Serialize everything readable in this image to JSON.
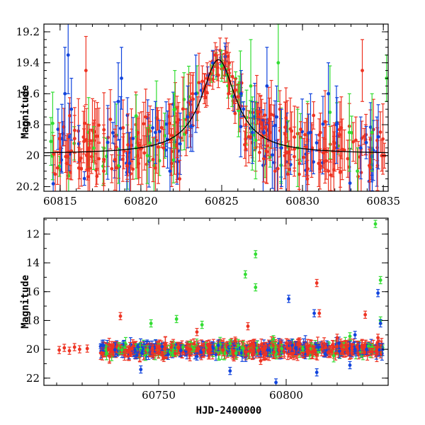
{
  "colors": {
    "red": "#ee3322",
    "green": "#33dd33",
    "blue": "#1144dd",
    "fit": "#000000"
  },
  "chart_data": [
    {
      "type": "scatter",
      "title": "",
      "xlabel": "",
      "ylabel": "Magnitude",
      "xlim": [
        60814,
        60835.3
      ],
      "ylim": [
        20.23,
        19.15
      ],
      "y_inverted": true,
      "xticks": [
        60815,
        60820,
        60825,
        60830,
        60835
      ],
      "yticks": [
        19.2,
        19.4,
        19.6,
        19.8,
        20,
        20.2
      ],
      "xtick_labels": [
        "60815",
        "60820",
        "60825",
        "60830",
        "60835"
      ],
      "ytick_labels": [
        "19.2",
        "19.4",
        "19.6",
        "19.8",
        "20",
        "20.2"
      ],
      "grid": false,
      "legend": "none",
      "series": [
        {
          "color": "#ee3322",
          "points": [
            [
              60814.6,
              19.99,
              0.12
            ],
            [
              60814.7,
              20.12,
              0.15
            ],
            [
              60815.4,
              20.05,
              0.18
            ],
            [
              60815.9,
              19.89,
              0.15
            ],
            [
              60816.2,
              20.03,
              0.12
            ],
            [
              60816.6,
              19.45,
              0.22
            ],
            [
              60816.8,
              19.95,
              0.15
            ],
            [
              60817.4,
              20.02,
              0.1
            ],
            [
              60817.7,
              20.1,
              0.08
            ],
            [
              60818.9,
              19.82,
              0.18
            ],
            [
              60819.2,
              19.93,
              0.2
            ],
            [
              60819.8,
              20.0,
              0.15
            ],
            [
              60820.3,
              19.75,
              0.18
            ],
            [
              60820.9,
              20.08,
              0.2
            ],
            [
              60821.4,
              19.95,
              0.12
            ],
            [
              60821.9,
              20.05,
              0.15
            ],
            [
              60822.4,
              20.15,
              0.12
            ],
            [
              60822.8,
              19.85,
              0.15
            ],
            [
              60823.2,
              19.6,
              0.12
            ],
            [
              60823.5,
              19.72,
              0.1
            ],
            [
              60823.8,
              19.52,
              0.1
            ],
            [
              60824.1,
              19.5,
              0.1
            ],
            [
              60824.3,
              19.47,
              0.08
            ],
            [
              60824.6,
              19.35,
              0.08
            ],
            [
              60824.9,
              19.32,
              0.08
            ],
            [
              60825.2,
              19.4,
              0.08
            ],
            [
              60825.5,
              19.52,
              0.08
            ],
            [
              60825.8,
              19.58,
              0.08
            ],
            [
              60826.0,
              19.62,
              0.08
            ],
            [
              60826.2,
              19.68,
              0.08
            ],
            [
              60826.5,
              19.8,
              0.12
            ],
            [
              60826.8,
              19.88,
              0.12
            ],
            [
              60827.1,
              19.95,
              0.15
            ],
            [
              60827.3,
              19.75,
              0.15
            ],
            [
              60827.6,
              20.02,
              0.15
            ],
            [
              60828.0,
              19.85,
              0.18
            ],
            [
              60828.3,
              20.1,
              0.15
            ],
            [
              60828.6,
              19.7,
              0.12
            ],
            [
              60828.9,
              20.0,
              0.15
            ],
            [
              60829.5,
              19.88,
              0.2
            ],
            [
              60829.8,
              20.05,
              0.2
            ],
            [
              60830.3,
              20.15,
              0.12
            ],
            [
              60830.6,
              19.95,
              0.15
            ],
            [
              60831.0,
              20.05,
              0.15
            ],
            [
              60831.4,
              19.78,
              0.2
            ],
            [
              60831.6,
              20.1,
              0.15
            ],
            [
              60832.0,
              19.95,
              0.15
            ],
            [
              60832.4,
              19.82,
              0.2
            ],
            [
              60832.8,
              20.02,
              0.12
            ],
            [
              60833.3,
              19.9,
              0.15
            ],
            [
              60833.7,
              19.45,
              0.2
            ],
            [
              60834.3,
              19.98,
              0.12
            ],
            [
              60834.9,
              20.0,
              0.1
            ]
          ]
        },
        {
          "color": "#33dd33",
          "points": [
            [
              60819.7,
              19.95,
              0.2
            ],
            [
              60820.4,
              20.0,
              0.18
            ],
            [
              60822.1,
              19.7,
              0.25
            ],
            [
              60825.0,
              19.42,
              0.1
            ],
            [
              60826.8,
              19.55,
              0.3
            ],
            [
              60827.1,
              19.9,
              0.25
            ],
            [
              60828.5,
              19.4,
              0.25
            ],
            [
              60829.7,
              19.95,
              0.25
            ],
            [
              60831.7,
              19.72,
              0.3
            ],
            [
              60832.9,
              19.85,
              0.25
            ],
            [
              60833.4,
              20.1,
              0.15
            ],
            [
              60834.3,
              19.85,
              0.25
            ],
            [
              60835.2,
              19.5,
              0.15
            ]
          ]
        },
        {
          "color": "#1144dd",
          "points": [
            [
              60815.3,
              19.6,
              0.3
            ],
            [
              60815.5,
              19.35,
              0.25
            ],
            [
              60815.7,
              19.7,
              0.2
            ],
            [
              60818.6,
              19.65,
              0.25
            ],
            [
              60818.8,
              19.5,
              0.2
            ],
            [
              60819.3,
              20.05,
              0.2
            ],
            [
              60820.9,
              19.85,
              0.2
            ],
            [
              60821.8,
              20.1,
              0.15
            ],
            [
              60822.9,
              19.75,
              0.2
            ],
            [
              60823.4,
              19.6,
              0.25
            ],
            [
              60826.2,
              19.6,
              0.15
            ],
            [
              60826.9,
              19.85,
              0.2
            ],
            [
              60827.8,
              19.55,
              0.25
            ],
            [
              60828.4,
              19.75,
              0.2
            ],
            [
              60828.7,
              19.95,
              0.25
            ],
            [
              60830.5,
              19.85,
              0.25
            ],
            [
              60831.6,
              19.6,
              0.2
            ],
            [
              60832.1,
              19.8,
              0.25
            ],
            [
              60833.6,
              19.95,
              0.2
            ]
          ]
        }
      ],
      "model_curve": {
        "baseline": 19.99,
        "peak": 19.38,
        "t0": 60824.8,
        "width": 1.3
      }
    },
    {
      "type": "scatter",
      "title": "",
      "xlabel": "HJD-2400000",
      "ylabel": "Magnitude",
      "xlim": [
        60705,
        60840
      ],
      "ylim": [
        22.5,
        10.9
      ],
      "y_inverted": true,
      "xticks": [
        60750,
        60800
      ],
      "yticks": [
        12,
        14,
        16,
        18,
        20,
        22
      ],
      "xtick_labels": [
        "60750",
        "60800"
      ],
      "ytick_labels": [
        "12",
        "14",
        "16",
        "18",
        "20",
        "22"
      ],
      "grid": false,
      "legend": "none",
      "baseline_mag": 20.0,
      "series": [
        {
          "color": "#ee3322",
          "points": [
            [
              60711,
              20.05
            ],
            [
              60713,
              19.9
            ],
            [
              60715,
              20.1
            ],
            [
              60717,
              19.85
            ],
            [
              60719,
              20.0
            ],
            [
              60722,
              19.95
            ],
            [
              60735,
              17.7
            ],
            [
              60765,
              18.8
            ],
            [
              60785,
              18.4
            ],
            [
              60812,
              15.4
            ],
            [
              60813,
              17.5
            ],
            [
              60831,
              17.6
            ],
            [
              60836,
              19.2
            ],
            [
              60752,
              20.6
            ],
            [
              60780,
              19.4
            ],
            [
              60820,
              19.2
            ],
            [
              60790,
              20.8
            ]
          ]
        },
        {
          "color": "#33dd33",
          "points": [
            [
              60784,
              14.8
            ],
            [
              60788,
              13.4
            ],
            [
              60788,
              15.7
            ],
            [
              60835,
              11.3
            ],
            [
              60837,
              15.2
            ],
            [
              60837,
              18.0
            ],
            [
              60747,
              18.2
            ],
            [
              60757,
              17.9
            ],
            [
              60767,
              18.3
            ],
            [
              60778,
              19.6
            ],
            [
              60795,
              19.3
            ],
            [
              60825,
              19.1
            ]
          ]
        },
        {
          "color": "#1144dd",
          "points": [
            [
              60801,
              16.5
            ],
            [
              60811,
              17.5
            ],
            [
              60836,
              16.1
            ],
            [
              60837,
              18.2
            ],
            [
              60743,
              21.4
            ],
            [
              60778,
              21.5
            ],
            [
              60796,
              22.3
            ],
            [
              60812,
              21.6
            ],
            [
              60825,
              21.1
            ],
            [
              60765,
              20.5
            ],
            [
              60827,
              19.0
            ]
          ]
        }
      ]
    }
  ]
}
